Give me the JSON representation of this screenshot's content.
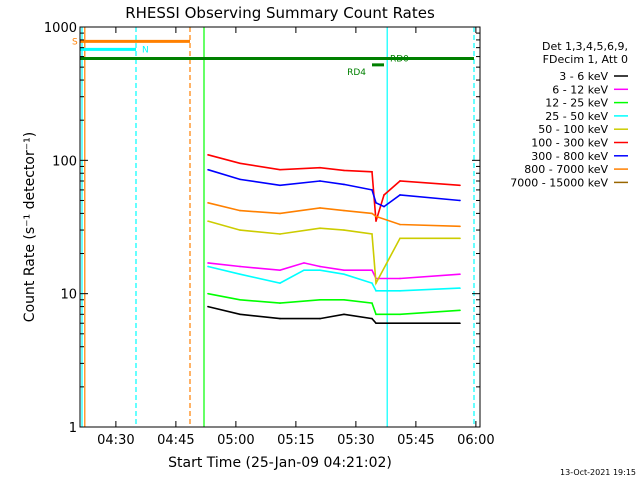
{
  "chart_data": {
    "type": "line",
    "title": "RHESSI Observing Summary Count Rates",
    "xlabel": "Start Time (25-Jan-09 04:21:02)",
    "ylabel": "Count Rate (s⁻¹ detector⁻¹)",
    "x_unit": "minutes since 04:21:02",
    "xlim": [
      0,
      100
    ],
    "ylim": [
      1,
      1000
    ],
    "yscale": "log",
    "xticks": [
      {
        "label": "04:30",
        "value": 8.97
      },
      {
        "label": "04:45",
        "value": 23.97
      },
      {
        "label": "05:00",
        "value": 38.97
      },
      {
        "label": "05:15",
        "value": 53.97
      },
      {
        "label": "05:30",
        "value": 68.97
      },
      {
        "label": "05:45",
        "value": 83.97
      },
      {
        "label": "06:00",
        "value": 98.97
      }
    ],
    "yticks": [
      {
        "label": "1",
        "value": 1
      },
      {
        "label": "10",
        "value": 10
      },
      {
        "label": "100",
        "value": 100
      },
      {
        "label": "1000",
        "value": 1000
      }
    ],
    "legend_header": [
      "Det 1,3,4,5,6,9,",
      "FDecim 1, Att 0"
    ],
    "legend_position": "right",
    "series": [
      {
        "name": "3 - 6 keV",
        "color": "#000000",
        "x": [
          32,
          40,
          50,
          60,
          66,
          73,
          74,
          80,
          95
        ],
        "values": [
          8,
          7,
          6.5,
          6.5,
          7,
          6.5,
          6,
          6,
          6
        ]
      },
      {
        "name": "6 - 12 keV",
        "color": "#ff00ff",
        "x": [
          32,
          40,
          50,
          56,
          60,
          66,
          73,
          74,
          80,
          95
        ],
        "values": [
          17,
          16,
          15,
          17,
          16,
          15,
          15,
          13,
          13,
          14
        ]
      },
      {
        "name": "12 - 25 keV",
        "color": "#00ff00",
        "x": [
          32,
          40,
          50,
          60,
          66,
          73,
          74,
          80,
          95
        ],
        "values": [
          10,
          9,
          8.5,
          9,
          9,
          8.5,
          7,
          7,
          7.5
        ]
      },
      {
        "name": "25 - 50 keV",
        "color": "#00ffff",
        "x": [
          32,
          40,
          50,
          56,
          60,
          66,
          73,
          74,
          80,
          95
        ],
        "values": [
          16,
          14,
          12,
          15,
          15,
          14,
          12,
          10.5,
          10.5,
          11
        ]
      },
      {
        "name": "50 - 100 keV",
        "color": "#cccc00",
        "x": [
          32,
          40,
          50,
          60,
          66,
          73,
          74,
          80,
          95
        ],
        "values": [
          35,
          30,
          28,
          31,
          30,
          28,
          12,
          26,
          26
        ]
      },
      {
        "name": "100 - 300 keV",
        "color": "#ff0000",
        "x": [
          32,
          40,
          50,
          60,
          66,
          73,
          74,
          76,
          80,
          95
        ],
        "values": [
          110,
          95,
          85,
          88,
          84,
          82,
          35,
          55,
          70,
          65
        ]
      },
      {
        "name": "300 - 800 keV",
        "color": "#0000ff",
        "x": [
          32,
          40,
          50,
          60,
          66,
          73,
          74,
          76,
          80,
          95
        ],
        "values": [
          85,
          72,
          65,
          70,
          66,
          60,
          48,
          45,
          55,
          50
        ]
      },
      {
        "name": "800 - 7000 keV",
        "color": "#ff8000",
        "x": [
          32,
          40,
          50,
          60,
          66,
          73,
          74,
          80,
          95
        ],
        "values": [
          48,
          42,
          40,
          44,
          42,
          40,
          38,
          33,
          32
        ]
      },
      {
        "name": "7000 - 15000 keV",
        "color": "#996600",
        "x": [],
        "values": []
      }
    ],
    "annotations": [
      {
        "label": "S",
        "color": "#ff8000",
        "x_start": 0,
        "x_end": 27.5,
        "y": 780
      },
      {
        "label": "N",
        "color": "#00ffff",
        "x_start": 0,
        "x_end": 14,
        "y": 680
      },
      {
        "label": "RD0",
        "color": "#008000",
        "x_start": 0,
        "x_end": 98.5,
        "y": 580
      },
      {
        "label": "RD4",
        "color": "#008000",
        "x_start": 73,
        "x_end": 76,
        "y": 520
      }
    ],
    "vertical_lines": [
      {
        "x": 0.5,
        "color": "#00ffff",
        "style": "solid"
      },
      {
        "x": 1.2,
        "color": "#ff8000",
        "style": "solid"
      },
      {
        "x": 14,
        "color": "#00ffff",
        "style": "dashed"
      },
      {
        "x": 27.5,
        "color": "#ff8000",
        "style": "dashed"
      },
      {
        "x": 31,
        "color": "#00ff00",
        "style": "solid"
      },
      {
        "x": 76.8,
        "color": "#00ffff",
        "style": "solid"
      },
      {
        "x": 98.5,
        "color": "#00ffff",
        "style": "dashed"
      }
    ]
  },
  "footer": {
    "timestamp": "13-Oct-2021 19:15"
  }
}
